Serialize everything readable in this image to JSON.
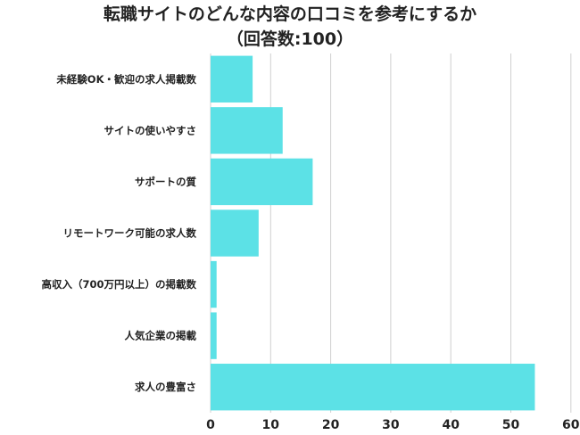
{
  "chart_data": {
    "type": "bar",
    "orientation": "horizontal",
    "title": "転職サイトのどんな内容の口コミを参考にするか",
    "subtitle": "（回答数:100）",
    "categories": [
      "未経験OK・歓迎の求人掲載数",
      "サイトの使いやすさ",
      "サポートの質",
      "リモートワーク可能の求人数",
      "高収入（700万円以上）の掲載数",
      "人気企業の掲載",
      "求人の豊富さ"
    ],
    "values": [
      7,
      12,
      17,
      8,
      1,
      1,
      54
    ],
    "xlim": [
      0,
      60
    ],
    "xticks": [
      0,
      10,
      20,
      30,
      40,
      50,
      60
    ],
    "grid": true,
    "bar_color": "#5ce1e6",
    "xlabel": "",
    "ylabel": ""
  }
}
